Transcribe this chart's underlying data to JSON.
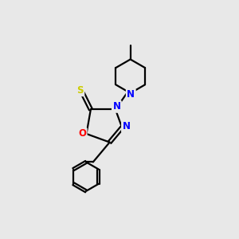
{
  "background_color": "#e8e8e8",
  "atom_colors": {
    "C": "#000000",
    "N": "#0000ff",
    "O": "#ff0000",
    "S": "#cccc00"
  },
  "figsize": [
    3.0,
    3.0
  ],
  "dpi": 100
}
